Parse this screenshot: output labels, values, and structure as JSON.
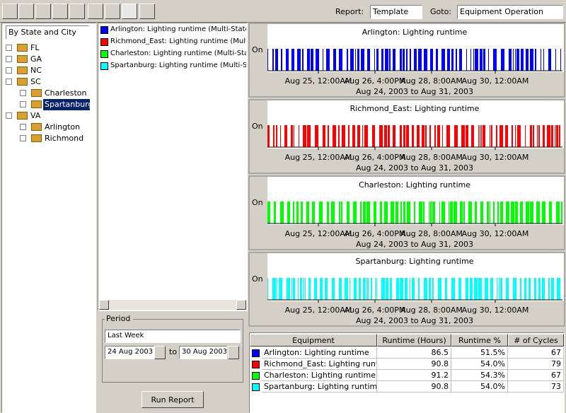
{
  "toolbar": {
    "report_label": "Report:",
    "report_value": "Template",
    "goto_label": "Goto:",
    "goto_value": "Equipment Operation"
  },
  "tree": {
    "grouping": "By State and City",
    "nodes": [
      {
        "label": "FL",
        "children": []
      },
      {
        "label": "GA",
        "children": []
      },
      {
        "label": "NC",
        "children": []
      },
      {
        "label": "SC",
        "children": [
          {
            "label": "Charleston"
          },
          {
            "label": "Spartanburg",
            "selected": true
          }
        ]
      },
      {
        "label": "VA",
        "children": [
          {
            "label": "Arlington"
          },
          {
            "label": "Richmond"
          }
        ]
      }
    ]
  },
  "series_list": [
    {
      "label": "Arlington: Lighting runtime (Multi-State)",
      "color": "#0000ff"
    },
    {
      "label": "Richmond_East: Lighting runtime (Multi-State)",
      "color": "#ff0000"
    },
    {
      "label": "Charleston: Lighting runtime (Multi-State)",
      "color": "#00ff00"
    },
    {
      "label": "Spartanburg: Lighting runtime (Multi-State)",
      "color": "#00ffff"
    }
  ],
  "period": {
    "label": "Period",
    "range": "Last Week",
    "from": "24 Aug 2003",
    "to_label": "to",
    "to": "30 Aug 2003",
    "button": "Run Report"
  },
  "charts": [
    {
      "title": "Arlington: Lighting runtime",
      "color": "#0000ff",
      "y_label": "On",
      "x_labels": [
        "Aug 25, 12:00AM",
        "Aug 26, 4:00PM",
        "Aug 28, 8:00AM",
        "Aug 30, 12:00AM"
      ],
      "subtitle": "Aug 24, 2003 to Aug 31, 2003"
    },
    {
      "title": "Richmond_East: Lighting runtime",
      "color": "#ff0000",
      "y_label": "On",
      "x_labels": [
        "Aug 25, 12:00AM",
        "Aug 26, 4:00PM",
        "Aug 28, 8:00AM",
        "Aug 30, 12:00AM"
      ],
      "subtitle": "Aug 24, 2003 to Aug 31, 2003"
    },
    {
      "title": "Charleston: Lighting runtime",
      "color": "#00ff00",
      "y_label": "On",
      "x_labels": [
        "Aug 25, 12:00AM",
        "Aug 26, 4:00PM",
        "Aug 28, 8:00AM",
        "Aug 30, 12:00AM"
      ],
      "subtitle": "Aug 24, 2003 to Aug 31, 2003"
    },
    {
      "title": "Spartanburg: Lighting runtime",
      "color": "#00ffff",
      "y_label": "On",
      "x_labels": [
        "Aug 25, 12:00AM",
        "Aug 26, 4:00PM",
        "Aug 28, 8:00AM",
        "Aug 30, 12:00AM"
      ],
      "subtitle": "Aug 24, 2003 to Aug 31, 2003"
    }
  ],
  "table": {
    "headers": [
      "Equipment",
      "Runtime (Hours)",
      "Runtime %",
      "# of Cycles"
    ],
    "rows": [
      {
        "color": "#0000ff",
        "cells": [
          "Arlington: Lighting runtime",
          86.5,
          "51.5%",
          67
        ]
      },
      {
        "color": "#ff0000",
        "cells": [
          "Richmond_East: Lighting runtime",
          90.8,
          "54.0%",
          79
        ]
      },
      {
        "color": "#00ff00",
        "cells": [
          "Charleston: Lighting runtime",
          91.2,
          "54.3%",
          67
        ]
      },
      {
        "color": "#00ffff",
        "cells": [
          "Spartanburg: Lighting runtime",
          90.8,
          "54.0%",
          73
        ]
      }
    ]
  }
}
